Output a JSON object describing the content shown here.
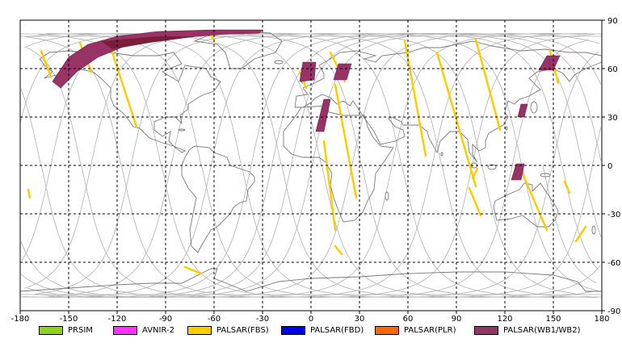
{
  "map": {
    "lon_ticks": [
      "-180",
      "-150",
      "-120",
      "-90",
      "-60",
      "-30",
      "0",
      "30",
      "60",
      "90",
      "120",
      "150",
      "180"
    ],
    "lat_ticks": [
      "90",
      "60",
      "30",
      "0",
      "-30",
      "-60",
      "-90"
    ],
    "lon_range": [
      -180,
      180
    ],
    "lat_range": [
      -90,
      90
    ],
    "grid": "dashed",
    "colors": {
      "frame": "#000000",
      "grid": "#000000",
      "orbits": "#b0b0b0",
      "coast": "#7a7a7a"
    }
  },
  "legend": [
    {
      "label": "PRSIM",
      "color": "#8fcf1d"
    },
    {
      "label": "AVNIR-2",
      "color": "#ff33ff"
    },
    {
      "label": "PALSAR(FBS)",
      "color": "#ffcc00"
    },
    {
      "label": "PALSAR(FBD)",
      "color": "#0000ee"
    },
    {
      "label": "PALSAR(PLR)",
      "color": "#ff6a00"
    },
    {
      "label": "PALSAR(WB1/WB2)",
      "color": "#993366"
    }
  ],
  "swaths": {
    "fbs": [
      {
        "lon": [
          -167,
          -161
        ],
        "lat": [
          71,
          55
        ]
      },
      {
        "lon": [
          -143,
          -136
        ],
        "lat": [
          76,
          58
        ]
      },
      {
        "lon": [
          -125,
          -108
        ],
        "lat": [
          76,
          24
        ]
      },
      {
        "lon": [
          -63,
          -60
        ],
        "lat": [
          82,
          78
        ]
      },
      {
        "lon": [
          -7,
          -3
        ],
        "lat": [
          58,
          48
        ]
      },
      {
        "lon": [
          12,
          21
        ],
        "lat": [
          70,
          52
        ]
      },
      {
        "lon": [
          15,
          28
        ],
        "lat": [
          50,
          -20
        ]
      },
      {
        "lon": [
          8,
          15
        ],
        "lat": [
          15,
          -40
        ]
      },
      {
        "lon": [
          58,
          71
        ],
        "lat": [
          77,
          6
        ]
      },
      {
        "lon": [
          78,
          102
        ],
        "lat": [
          70,
          -13
        ]
      },
      {
        "lon": [
          102,
          117
        ],
        "lat": [
          78,
          22
        ]
      },
      {
        "lon": [
          148,
          153
        ],
        "lat": [
          71,
          51
        ]
      },
      {
        "lon": [
          130,
          146
        ],
        "lat": [
          -3,
          -40
        ]
      },
      {
        "lon": [
          -175,
          -174
        ],
        "lat": [
          -15,
          -20
        ]
      },
      {
        "lon": [
          15,
          19
        ],
        "lat": [
          -50,
          -55
        ]
      },
      {
        "lon": [
          98,
          105
        ],
        "lat": [
          -14,
          -31
        ]
      },
      {
        "lon": [
          157,
          160
        ],
        "lat": [
          -10,
          -17
        ]
      },
      {
        "lon": [
          170,
          164
        ],
        "lat": [
          -38,
          -47
        ]
      },
      {
        "lon": [
          103,
          100
        ],
        "lat": [
          -2,
          -8
        ]
      },
      {
        "lon": [
          -78,
          -68
        ],
        "lat": [
          -63,
          -67
        ]
      }
    ],
    "wb": [
      {
        "lon": [
          -5,
          3,
          2,
          -7
        ],
        "lat": [
          64,
          64,
          53,
          52
        ]
      },
      {
        "lon": [
          17,
          25,
          22,
          14
        ],
        "lat": [
          63,
          63,
          53,
          53
        ]
      },
      {
        "lon": [
          8,
          12,
          8,
          3
        ],
        "lat": [
          41,
          41,
          21,
          21
        ]
      },
      {
        "lon": [
          146,
          154,
          150,
          141
        ],
        "lat": [
          68,
          68,
          59,
          59
        ]
      },
      {
        "lon": [
          130,
          134,
          132,
          128
        ],
        "lat": [
          38,
          38,
          30,
          30
        ]
      },
      {
        "lon": [
          127,
          132,
          130,
          124
        ],
        "lat": [
          1,
          1,
          -9,
          -9
        ]
      }
    ]
  }
}
